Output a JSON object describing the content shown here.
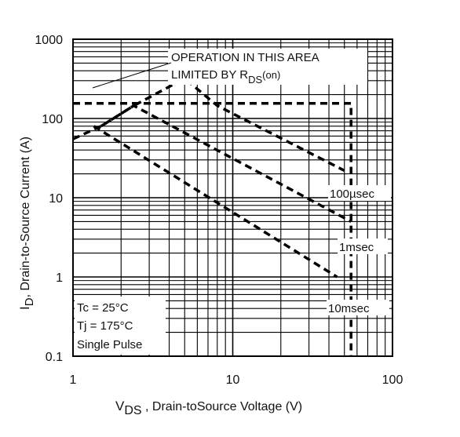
{
  "chart_data": {
    "type": "line",
    "title": "",
    "xlabel": {
      "main": "V",
      "sub": "DS",
      "rest": " , Drain-toSource Voltage (V)"
    },
    "ylabel": {
      "main": "I",
      "sub": "D",
      "rest": ",  Drain-to-Source Current (A)"
    },
    "x_scale": "log",
    "y_scale": "log",
    "xlim": [
      1,
      100
    ],
    "ylim": [
      0.1,
      1000
    ],
    "x_ticks": [
      "1",
      "10",
      "100"
    ],
    "y_ticks": [
      "0.1",
      "1",
      "10",
      "100",
      "1000"
    ],
    "grid": true,
    "series": [
      {
        "name": "",
        "points": [
          [
            1,
            55
          ],
          [
            1.5,
            80
          ],
          [
            2.4,
            145
          ],
          [
            5,
            320
          ],
          [
            8,
            145
          ],
          [
            50,
            22
          ]
        ]
      },
      {
        "name": "",
        "points": [
          [
            1.5,
            80
          ],
          [
            2.4,
            145
          ],
          [
            55,
            5
          ]
        ]
      },
      {
        "name": "",
        "points": [
          [
            1.35,
            80
          ],
          [
            45,
            1
          ]
        ]
      },
      {
        "name": "",
        "points": [
          [
            1,
            155
          ],
          [
            55,
            155
          ],
          [
            55,
            0.1
          ]
        ]
      }
    ],
    "annotations": {
      "rds_line1": "OPERATION IN THIS AREA",
      "rds_line2_main": "LIMITED BY R",
      "rds_line2_sub": "DS",
      "rds_line2_tail": "(on)",
      "label_100us": "100µsec",
      "label_1ms": "1msec",
      "label_10ms": "10msec",
      "cond_tc": "Tc = 25°C",
      "cond_tj": "Tj = 175°C",
      "cond_pulse": "Single Pulse"
    }
  }
}
